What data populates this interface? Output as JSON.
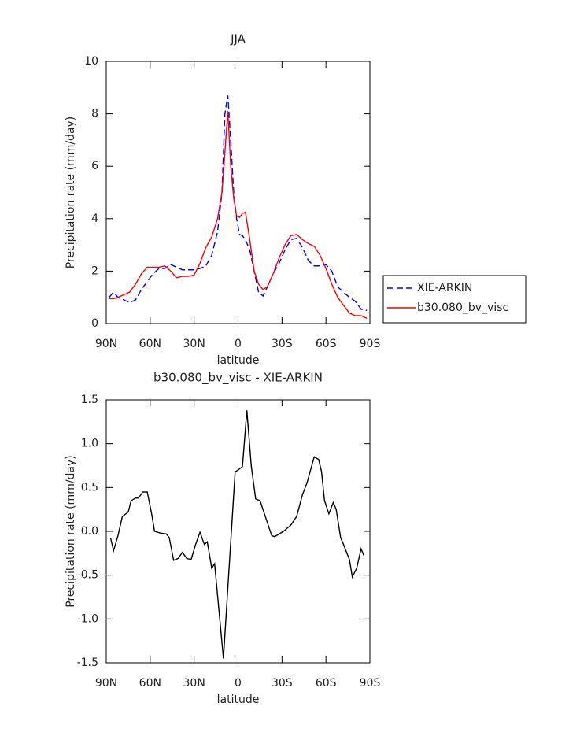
{
  "chart_data": [
    {
      "type": "line",
      "title": "JJA",
      "xlabel": "latitude",
      "ylabel": "Precipitation rate (mm/day)",
      "x": [
        88,
        85,
        82,
        78,
        74,
        70,
        66,
        62,
        58,
        54,
        50,
        46,
        42,
        38,
        34,
        30,
        26,
        22,
        18,
        14,
        11,
        9,
        7,
        5,
        3,
        1,
        -1,
        -3,
        -5,
        -8,
        -11,
        -14,
        -17,
        -20,
        -24,
        -28,
        -32,
        -36,
        -40,
        -44,
        -48,
        -52,
        -56,
        -60,
        -64,
        -68,
        -72,
        -76,
        -80,
        -84,
        -88
      ],
      "series": [
        {
          "name": "XIE-ARKIN",
          "color": "#0000ff",
          "line_style": "dashed",
          "values": [
            1.0,
            1.2,
            1.0,
            0.9,
            0.8,
            0.9,
            1.3,
            1.6,
            1.9,
            2.1,
            2.1,
            2.25,
            2.15,
            2.05,
            2.05,
            2.05,
            2.1,
            2.2,
            2.6,
            3.5,
            5.0,
            8.0,
            8.7,
            7.0,
            5.0,
            4.0,
            3.4,
            3.35,
            3.2,
            2.8,
            2.0,
            1.2,
            1.05,
            1.4,
            1.9,
            2.3,
            2.8,
            3.2,
            3.25,
            2.9,
            2.4,
            2.2,
            2.2,
            2.25,
            2.0,
            1.4,
            1.2,
            1.0,
            0.85,
            0.55,
            0.5
          ]
        },
        {
          "name": "b30.080_bv_visc",
          "color": "#ff0000",
          "line_style": "solid",
          "values": [
            0.95,
            0.95,
            1.0,
            1.1,
            1.2,
            1.5,
            1.9,
            2.15,
            2.15,
            2.15,
            2.2,
            2.0,
            1.75,
            1.8,
            1.8,
            1.85,
            2.3,
            2.9,
            3.3,
            4.0,
            5.0,
            6.5,
            8.1,
            6.0,
            4.8,
            4.1,
            4.05,
            4.2,
            4.25,
            3.2,
            2.0,
            1.5,
            1.3,
            1.4,
            1.9,
            2.5,
            3.0,
            3.35,
            3.4,
            3.2,
            3.05,
            2.95,
            2.6,
            2.1,
            1.5,
            1.0,
            0.7,
            0.4,
            0.3,
            0.3,
            0.2
          ]
        }
      ],
      "xlim": [
        90,
        -90
      ],
      "xticks": [
        {
          "value": 90,
          "label": "90N"
        },
        {
          "value": 60,
          "label": "60N"
        },
        {
          "value": 30,
          "label": "30N"
        },
        0,
        {
          "value": -30,
          "label": "30S"
        },
        {
          "value": -60,
          "label": "60S"
        },
        {
          "value": -90,
          "label": "90S"
        }
      ],
      "ylim": [
        0,
        10
      ],
      "yticks": [
        0,
        2,
        4,
        6,
        8,
        10
      ],
      "legend": "outside-right"
    },
    {
      "type": "line",
      "title": "b30.080_bv_visc - XIE-ARKIN",
      "xlabel": "latitude",
      "ylabel": "Precipitation rate (mm/day)",
      "x": [
        87,
        85,
        82,
        79,
        75,
        73,
        70,
        68,
        65,
        62,
        59,
        57,
        53,
        49,
        47,
        44,
        41,
        38,
        35,
        32,
        29,
        26,
        23,
        21,
        18,
        16,
        10,
        2,
        0,
        -3,
        -6,
        -9,
        -12,
        -15,
        -18,
        -21,
        -23,
        -25,
        -31,
        -36,
        -40,
        -44,
        -47,
        -50,
        -52,
        -55,
        -57,
        -59,
        -62,
        -65,
        -67,
        -70,
        -72,
        -76,
        -78,
        -81,
        -84,
        -86
      ],
      "series": [
        {
          "color": "#000000",
          "line_style": "solid",
          "values": [
            -0.08,
            -0.22,
            -0.05,
            0.17,
            0.22,
            0.35,
            0.38,
            0.38,
            0.45,
            0.45,
            0.2,
            0.0,
            -0.02,
            -0.03,
            -0.07,
            -0.33,
            -0.31,
            -0.24,
            -0.31,
            -0.32,
            -0.15,
            -0.01,
            -0.15,
            -0.12,
            -0.42,
            -0.37,
            -1.45,
            0.68,
            0.7,
            0.74,
            1.38,
            0.75,
            0.37,
            0.35,
            0.2,
            0.05,
            -0.05,
            -0.06,
            0.0,
            0.07,
            0.17,
            0.42,
            0.55,
            0.73,
            0.85,
            0.82,
            0.68,
            0.35,
            0.2,
            0.33,
            0.25,
            -0.07,
            -0.15,
            -0.32,
            -0.52,
            -0.42,
            -0.2,
            -0.28
          ]
        }
      ],
      "xlim": [
        90,
        -90
      ],
      "xticks": [
        {
          "value": 90,
          "label": "90N"
        },
        {
          "value": 60,
          "label": "60N"
        },
        {
          "value": 30,
          "label": "30N"
        },
        0,
        {
          "value": -30,
          "label": "30S"
        },
        {
          "value": -60,
          "label": "60S"
        },
        {
          "value": -90,
          "label": "90S"
        }
      ],
      "ylim": [
        -1.5,
        1.5
      ],
      "yticks": [
        -1.5,
        {
          "value": -1.0,
          "label": "-1.0"
        },
        -0.5,
        {
          "value": 0.0,
          "label": "0.0"
        },
        0.5,
        {
          "value": 1.0,
          "label": "1.0"
        },
        1.5
      ]
    }
  ]
}
